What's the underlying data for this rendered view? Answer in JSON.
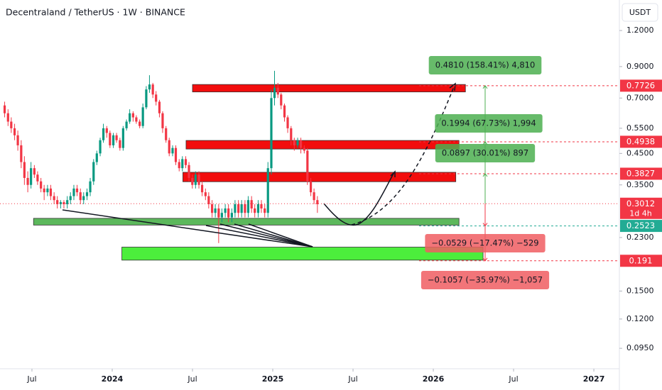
{
  "chart_data": {
    "type": "candlestick",
    "title": "Decentraland / TetherUS · 1W · BINANCE",
    "currency": "USDT",
    "log_scale": true,
    "up_color": "#089981",
    "down_color": "#f23645",
    "ylim": [
      0.0807,
      1.531
    ],
    "yticks": [
      {
        "value": 1.2,
        "label": "1.2000"
      },
      {
        "value": 0.9,
        "label": "0.9000"
      },
      {
        "value": 0.7,
        "label": "0.7000"
      },
      {
        "value": 0.55,
        "label": "0.5500"
      },
      {
        "value": 0.45,
        "label": "0.4500"
      },
      {
        "value": 0.35,
        "label": "0.3500"
      },
      {
        "value": 0.23,
        "label": "0.2300"
      },
      {
        "value": 0.15,
        "label": "0.1500"
      },
      {
        "value": 0.12,
        "label": "0.1200"
      },
      {
        "value": 0.095,
        "label": "0.0950"
      }
    ],
    "xlim": [
      2023.301,
      2027.159
    ],
    "xticks": [
      {
        "value": 2023.5,
        "label": "Jul"
      },
      2024,
      {
        "value": 2024.5,
        "label": "Jul"
      },
      2025,
      {
        "value": 2025.5,
        "label": "Jul"
      },
      2026,
      {
        "value": 2026.5,
        "label": "Jul"
      },
      2027
    ],
    "x": [
      2023.33,
      2023.351,
      2023.371,
      2023.392,
      2023.412,
      2023.433,
      2023.453,
      2023.474,
      2023.494,
      2023.515,
      2023.535,
      2023.556,
      2023.576,
      2023.597,
      2023.617,
      2023.638,
      2023.658,
      2023.679,
      2023.699,
      2023.72,
      2023.74,
      2023.761,
      2023.781,
      2023.802,
      2023.822,
      2023.843,
      2023.863,
      2023.884,
      2023.904,
      2023.925,
      2023.945,
      2023.966,
      2023.986,
      2024.007,
      2024.027,
      2024.048,
      2024.068,
      2024.089,
      2024.109,
      2024.13,
      2024.15,
      2024.171,
      2024.191,
      2024.212,
      2024.232,
      2024.253,
      2024.273,
      2024.294,
      2024.314,
      2024.335,
      2024.355,
      2024.376,
      2024.396,
      2024.417,
      2024.437,
      2024.458,
      2024.478,
      2024.499,
      2024.519,
      2024.54,
      2024.56,
      2024.581,
      2024.601,
      2024.622,
      2024.642,
      2024.663,
      2024.683,
      2024.704,
      2024.724,
      2024.745,
      2024.765,
      2024.786,
      2024.806,
      2024.827,
      2024.847,
      2024.868,
      2024.888,
      2024.909,
      2024.929,
      2024.95,
      2024.97,
      2024.991,
      2025.011,
      2025.032,
      2025.052,
      2025.073,
      2025.093,
      2025.114,
      2025.134,
      2025.155,
      2025.175,
      2025.196,
      2025.216,
      2025.237,
      2025.257,
      2025.278
    ],
    "open": [
      0.66,
      0.62,
      0.58,
      0.55,
      0.52,
      0.48,
      0.42,
      0.37,
      0.35,
      0.4,
      0.38,
      0.36,
      0.34,
      0.33,
      0.34,
      0.32,
      0.31,
      0.3,
      0.305,
      0.3,
      0.31,
      0.32,
      0.34,
      0.33,
      0.31,
      0.32,
      0.33,
      0.36,
      0.42,
      0.45,
      0.5,
      0.55,
      0.53,
      0.48,
      0.52,
      0.5,
      0.47,
      0.55,
      0.58,
      0.62,
      0.6,
      0.58,
      0.56,
      0.65,
      0.75,
      0.78,
      0.72,
      0.68,
      0.62,
      0.55,
      0.5,
      0.45,
      0.47,
      0.42,
      0.4,
      0.43,
      0.41,
      0.37,
      0.35,
      0.38,
      0.35,
      0.33,
      0.32,
      0.3,
      0.28,
      0.29,
      0.27,
      0.28,
      0.29,
      0.27,
      0.28,
      0.3,
      0.28,
      0.3,
      0.28,
      0.31,
      0.29,
      0.28,
      0.3,
      0.29,
      0.28,
      0.4,
      0.7,
      0.76,
      0.72,
      0.66,
      0.6,
      0.55,
      0.5,
      0.48,
      0.5,
      0.47,
      0.46,
      0.36,
      0.33,
      0.31
    ],
    "high": [
      0.68,
      0.64,
      0.6,
      0.57,
      0.54,
      0.5,
      0.44,
      0.39,
      0.42,
      0.41,
      0.39,
      0.37,
      0.35,
      0.35,
      0.35,
      0.33,
      0.32,
      0.31,
      0.31,
      0.32,
      0.33,
      0.35,
      0.35,
      0.34,
      0.33,
      0.34,
      0.37,
      0.43,
      0.46,
      0.51,
      0.57,
      0.56,
      0.54,
      0.53,
      0.53,
      0.51,
      0.56,
      0.59,
      0.64,
      0.63,
      0.61,
      0.59,
      0.67,
      0.77,
      0.84,
      0.79,
      0.74,
      0.69,
      0.63,
      0.56,
      0.51,
      0.48,
      0.48,
      0.43,
      0.44,
      0.44,
      0.42,
      0.38,
      0.39,
      0.39,
      0.36,
      0.34,
      0.33,
      0.31,
      0.3,
      0.3,
      0.29,
      0.3,
      0.3,
      0.29,
      0.31,
      0.31,
      0.31,
      0.31,
      0.32,
      0.32,
      0.3,
      0.31,
      0.31,
      0.3,
      0.42,
      0.75,
      0.87,
      0.79,
      0.73,
      0.67,
      0.61,
      0.56,
      0.51,
      0.51,
      0.51,
      0.48,
      0.47,
      0.37,
      0.34,
      0.32
    ],
    "low": [
      0.6,
      0.56,
      0.53,
      0.5,
      0.46,
      0.4,
      0.35,
      0.33,
      0.34,
      0.37,
      0.35,
      0.33,
      0.31,
      0.32,
      0.31,
      0.3,
      0.29,
      0.29,
      0.29,
      0.29,
      0.3,
      0.31,
      0.32,
      0.3,
      0.3,
      0.31,
      0.32,
      0.35,
      0.41,
      0.44,
      0.49,
      0.51,
      0.47,
      0.47,
      0.49,
      0.46,
      0.46,
      0.54,
      0.57,
      0.58,
      0.57,
      0.55,
      0.55,
      0.64,
      0.73,
      0.7,
      0.66,
      0.6,
      0.53,
      0.49,
      0.44,
      0.44,
      0.41,
      0.39,
      0.39,
      0.4,
      0.36,
      0.34,
      0.34,
      0.34,
      0.32,
      0.31,
      0.29,
      0.27,
      0.27,
      0.22,
      0.26,
      0.27,
      0.26,
      0.26,
      0.27,
      0.27,
      0.27,
      0.27,
      0.27,
      0.28,
      0.27,
      0.27,
      0.28,
      0.27,
      0.27,
      0.38,
      0.66,
      0.7,
      0.64,
      0.58,
      0.53,
      0.48,
      0.46,
      0.47,
      0.45,
      0.45,
      0.35,
      0.32,
      0.3,
      0.28
    ],
    "close": [
      0.62,
      0.58,
      0.55,
      0.52,
      0.48,
      0.42,
      0.37,
      0.35,
      0.4,
      0.38,
      0.36,
      0.34,
      0.33,
      0.34,
      0.32,
      0.31,
      0.3,
      0.305,
      0.3,
      0.31,
      0.32,
      0.34,
      0.33,
      0.31,
      0.32,
      0.33,
      0.36,
      0.42,
      0.45,
      0.5,
      0.55,
      0.53,
      0.48,
      0.52,
      0.5,
      0.47,
      0.55,
      0.58,
      0.62,
      0.6,
      0.58,
      0.56,
      0.65,
      0.75,
      0.78,
      0.72,
      0.68,
      0.62,
      0.55,
      0.5,
      0.45,
      0.47,
      0.42,
      0.4,
      0.43,
      0.41,
      0.37,
      0.35,
      0.38,
      0.35,
      0.33,
      0.32,
      0.3,
      0.28,
      0.29,
      0.27,
      0.28,
      0.29,
      0.27,
      0.28,
      0.3,
      0.28,
      0.3,
      0.28,
      0.31,
      0.29,
      0.28,
      0.3,
      0.29,
      0.28,
      0.4,
      0.7,
      0.76,
      0.72,
      0.66,
      0.6,
      0.55,
      0.5,
      0.48,
      0.5,
      0.47,
      0.46,
      0.36,
      0.33,
      0.31,
      0.3
    ],
    "zones": [
      {
        "top": 0.78,
        "bottom": 0.735,
        "x0": 2024.5,
        "x1": 2026.2,
        "color": "#f20d0d"
      },
      {
        "top": 0.499,
        "bottom": 0.466,
        "x0": 2024.46,
        "x1": 2026.16,
        "color": "#f20d0d"
      },
      {
        "top": 0.387,
        "bottom": 0.359,
        "x0": 2024.44,
        "x1": 2026.14,
        "color": "#f20d0d"
      },
      {
        "top": 0.268,
        "bottom": 0.254,
        "x0": 2023.51,
        "x1": 2026.16,
        "color": "#5cb85c"
      },
      {
        "top": 0.213,
        "bottom": 0.192,
        "x0": 2024.06,
        "x1": 2026.31,
        "color": "#4cee3c"
      }
    ],
    "price_tags": [
      {
        "value": 0.7726,
        "color": "#f23645"
      },
      {
        "value": 0.4938,
        "color": "#f23645"
      },
      {
        "value": 0.3827,
        "color": "#f23645"
      },
      {
        "value": 0.3012,
        "color": "#f23645",
        "countdown": "1d 4h"
      },
      {
        "value": 0.2523,
        "color": "#22ab94"
      },
      {
        "value": 0.191,
        "color": "#f23645"
      }
    ],
    "measurements": [
      {
        "label": "0.4810 (158.41%) 4,810",
        "color": "#4caf50"
      },
      {
        "label": "0.1994 (67.73%) 1,994",
        "color": "#4caf50"
      },
      {
        "label": "0.0897 (30.01%) 897",
        "color": "#4caf50"
      },
      {
        "label": "−0.0529 (−17.47%) −529",
        "color": "#f05d62"
      },
      {
        "label": "−0.1057 (−35.97%) −1,057",
        "color": "#f05d62"
      }
    ]
  }
}
